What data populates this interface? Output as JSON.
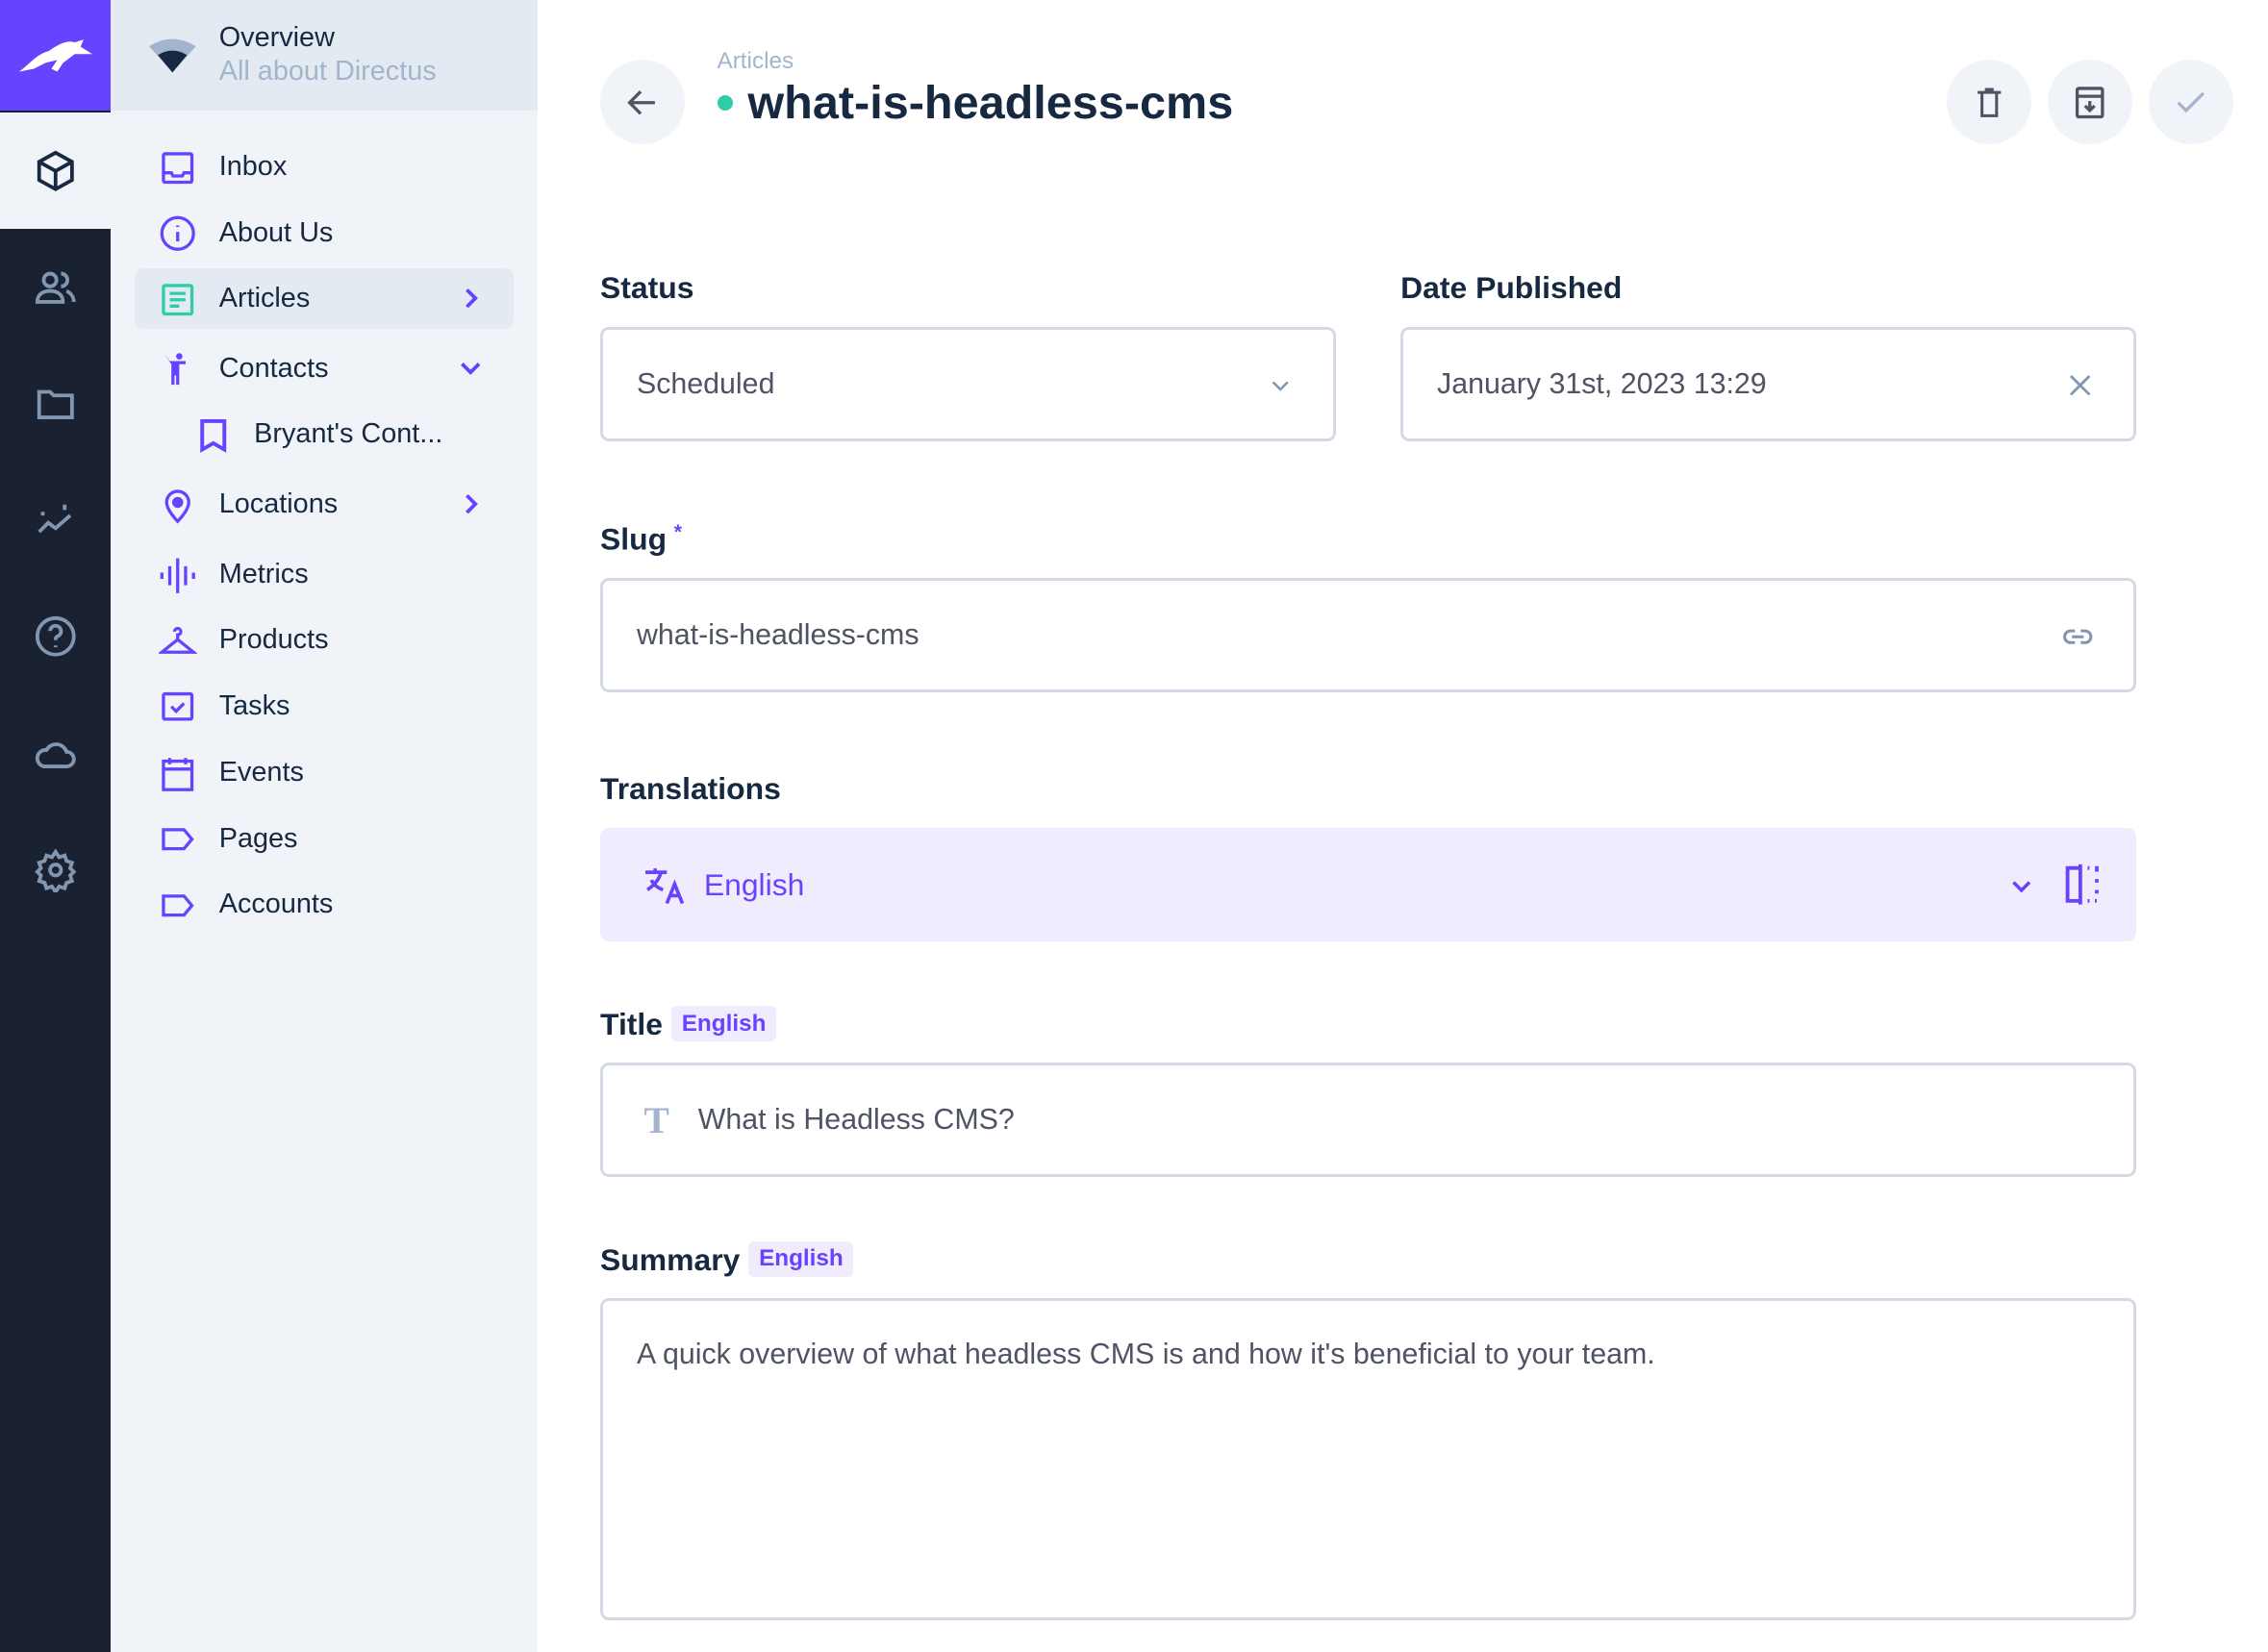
{
  "colors": {
    "primary": "#6644ff",
    "rail": "#1a2231",
    "success": "#2ecda7"
  },
  "nav": {
    "header_title": "Overview",
    "header_subtitle": "All about Directus",
    "items": [
      {
        "label": "Inbox",
        "icon": "inbox-icon"
      },
      {
        "label": "About Us",
        "icon": "info-icon"
      },
      {
        "label": "Articles",
        "icon": "article-icon",
        "active": true,
        "chevron": "right"
      },
      {
        "label": "Contacts",
        "icon": "person-icon",
        "chevron": "down"
      },
      {
        "label": "Bryant's Cont...",
        "icon": "bookmark-icon",
        "child": true
      },
      {
        "label": "Locations",
        "icon": "location-pin-icon",
        "chevron": "right"
      },
      {
        "label": "Metrics",
        "icon": "graphic-eq-icon"
      },
      {
        "label": "Products",
        "icon": "hanger-icon"
      },
      {
        "label": "Tasks",
        "icon": "checkbox-icon"
      },
      {
        "label": "Events",
        "icon": "calendar-icon"
      },
      {
        "label": "Pages",
        "icon": "label-icon"
      },
      {
        "label": "Accounts",
        "icon": "label-icon"
      }
    ]
  },
  "rail": [
    "content-icon",
    "users-icon",
    "files-icon",
    "insights-icon",
    "help-icon",
    "cloud-icon",
    "settings-icon"
  ],
  "header": {
    "breadcrumb": "Articles",
    "title": "what-is-headless-cms"
  },
  "form": {
    "status": {
      "label": "Status",
      "value": "Scheduled"
    },
    "date": {
      "label": "Date Published",
      "value": "January 31st, 2023 13:29"
    },
    "slug": {
      "label": "Slug",
      "required": "*",
      "value": "what-is-headless-cms"
    },
    "translations": {
      "label": "Translations",
      "language": "English"
    },
    "title": {
      "label": "Title",
      "tag": "English",
      "value": "What is Headless CMS?"
    },
    "summary": {
      "label": "Summary",
      "tag": "English",
      "value": "A quick overview of what headless CMS is and how it's beneficial to your team."
    }
  }
}
